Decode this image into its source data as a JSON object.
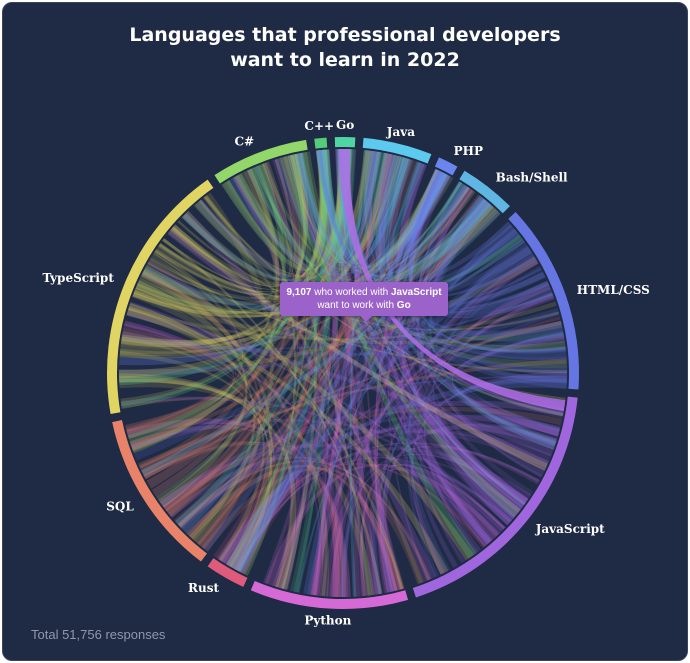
{
  "title_line1": "Languages that professional developers",
  "title_line2": "want to learn in 2022",
  "footer": "Total 51,756 responses",
  "tooltip": {
    "count": "9,107",
    "text_before": "who worked with",
    "from": "JavaScript",
    "text_middle": "want to work with",
    "to": "Go"
  },
  "chart_data": {
    "type": "chord",
    "title": "Languages that professional developers want to learn in 2022",
    "total_responses": 51756,
    "categories": [
      "JavaScript",
      "Python",
      "Rust",
      "SQL",
      "TypeScript",
      "C#",
      "C++",
      "Go",
      "Java",
      "PHP",
      "Bash/Shell",
      "HTML/CSS"
    ],
    "arcs": [
      {
        "name": "JavaScript",
        "color": "#a066dd",
        "start_deg": 6,
        "end_deg": 72
      },
      {
        "name": "Python",
        "color": "#d569d5",
        "start_deg": 74,
        "end_deg": 113
      },
      {
        "name": "Rust",
        "color": "#e05a7c",
        "start_deg": 115,
        "end_deg": 125
      },
      {
        "name": "SQL",
        "color": "#e8836a",
        "start_deg": 127,
        "end_deg": 168
      },
      {
        "name": "TypeScript",
        "color": "#e0d463",
        "start_deg": 170,
        "end_deg": 235
      },
      {
        "name": "C#",
        "color": "#93d66a",
        "start_deg": 237,
        "end_deg": 261
      },
      {
        "name": "C++",
        "color": "#55cc7a",
        "start_deg": 263,
        "end_deg": 266
      },
      {
        "name": "Go",
        "color": "#4fd4a3",
        "start_deg": 268,
        "end_deg": 273
      },
      {
        "name": "Java",
        "color": "#5cc9ee",
        "start_deg": 275,
        "end_deg": 292
      },
      {
        "name": "PHP",
        "color": "#6a86ee",
        "start_deg": 294,
        "end_deg": 299
      },
      {
        "name": "Bash/Shell",
        "color": "#5fb6e3",
        "start_deg": 301,
        "end_deg": 315
      },
      {
        "name": "HTML/CSS",
        "color": "#6576e2",
        "start_deg": 317,
        "end_deg": 4
      }
    ],
    "highlight": {
      "from": "JavaScript",
      "to": "Go",
      "value": 9107
    }
  }
}
